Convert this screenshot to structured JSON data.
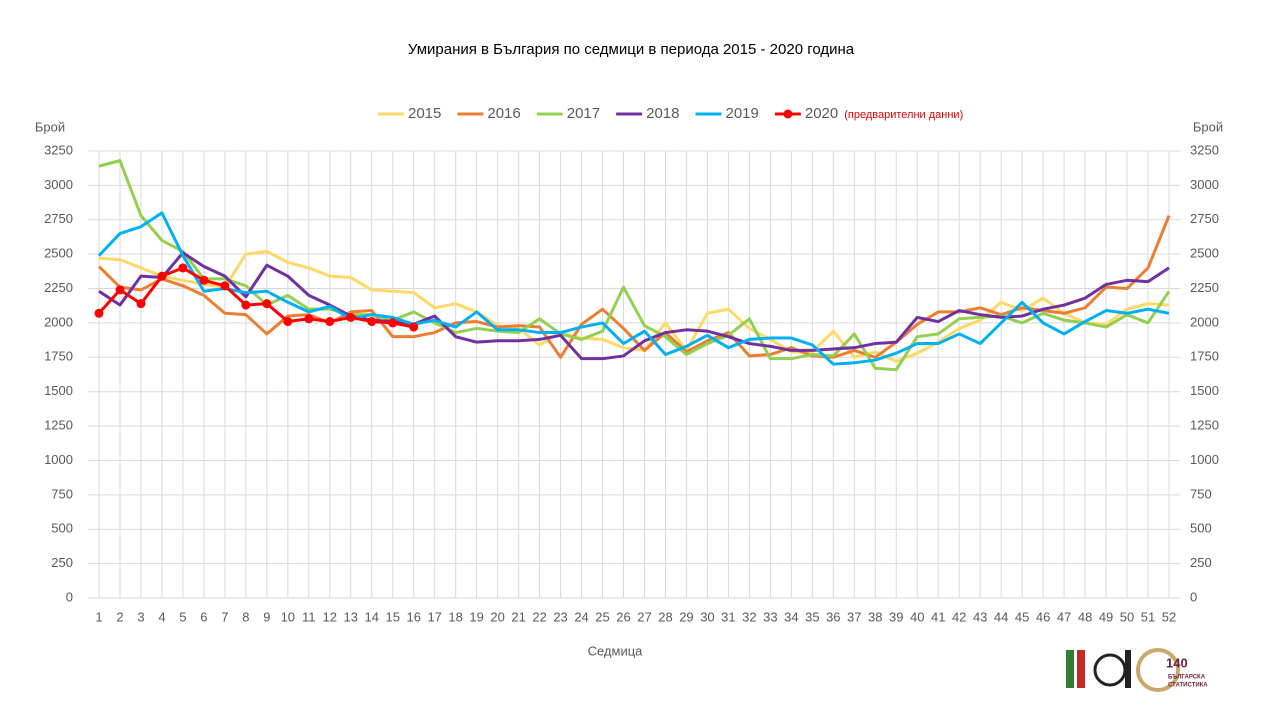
{
  "chart_data": {
    "type": "line",
    "title": "Умирания в България по седмици в периода 2015 - 2020 година",
    "x_label": "Седмица",
    "y_label": "Брой",
    "y2_label": "Брой",
    "annotation": "(предварителни данни)",
    "x": [
      1,
      2,
      3,
      4,
      5,
      6,
      7,
      8,
      9,
      10,
      11,
      12,
      13,
      14,
      15,
      16,
      17,
      18,
      19,
      20,
      21,
      22,
      23,
      24,
      25,
      26,
      27,
      28,
      29,
      30,
      31,
      32,
      33,
      34,
      35,
      36,
      37,
      38,
      39,
      40,
      41,
      42,
      43,
      44,
      45,
      46,
      47,
      48,
      49,
      50,
      51,
      52
    ],
    "xlim": [
      1,
      52
    ],
    "ylim": [
      0,
      3250
    ],
    "yticks": [
      0,
      250,
      500,
      750,
      1000,
      1250,
      1500,
      1750,
      2000,
      2250,
      2500,
      2750,
      3000,
      3250
    ],
    "y2lim": [
      0,
      3250
    ],
    "y2ticks": [
      0,
      250,
      500,
      750,
      1000,
      1250,
      1500,
      1750,
      2000,
      2250,
      2500,
      2750,
      3000,
      3250
    ],
    "grid": true,
    "legend": "top",
    "series": [
      {
        "name": "2015",
        "color": "#ffd966",
        "values": [
          2470,
          2460,
          2400,
          2340,
          2310,
          2280,
          2260,
          2500,
          2520,
          2440,
          2400,
          2340,
          2330,
          2240,
          2230,
          2220,
          2110,
          2140,
          2080,
          1980,
          1960,
          1840,
          1930,
          1890,
          1880,
          1820,
          1800,
          2000,
          1800,
          2070,
          2100,
          1960,
          1880,
          1790,
          1790,
          1940,
          1750,
          1790,
          1720,
          1780,
          1860,
          1960,
          2020,
          2150,
          2090,
          2180,
          2070,
          2000,
          1990,
          2100,
          2140,
          2130
        ]
      },
      {
        "name": "2016",
        "color": "#ed7d31",
        "values": [
          2410,
          2260,
          2240,
          2320,
          2270,
          2200,
          2070,
          2060,
          1920,
          2050,
          2060,
          2000,
          2080,
          2090,
          1900,
          1900,
          1930,
          2000,
          2010,
          1970,
          1980,
          1970,
          1750,
          1990,
          2100,
          1960,
          1800,
          1930,
          1790,
          1870,
          1930,
          1760,
          1770,
          1820,
          1760,
          1750,
          1800,
          1750,
          1860,
          1990,
          2080,
          2080,
          2110,
          2060,
          2110,
          2090,
          2070,
          2110,
          2260,
          2250,
          2400,
          2780
        ]
      },
      {
        "name": "2017",
        "color": "#92d050",
        "values": [
          3140,
          3180,
          2780,
          2600,
          2520,
          2320,
          2320,
          2270,
          2130,
          2200,
          2100,
          2100,
          2060,
          2060,
          2020,
          2080,
          2000,
          1930,
          1960,
          1940,
          1930,
          2030,
          1920,
          1880,
          1940,
          2260,
          1980,
          1900,
          1770,
          1850,
          1910,
          2030,
          1740,
          1740,
          1770,
          1760,
          1920,
          1670,
          1660,
          1900,
          1920,
          2030,
          2040,
          2050,
          2000,
          2070,
          2020,
          2000,
          1970,
          2060,
          2000,
          2230
        ]
      },
      {
        "name": "2018",
        "color": "#7030a0",
        "values": [
          2230,
          2130,
          2340,
          2330,
          2510,
          2410,
          2340,
          2190,
          2420,
          2340,
          2200,
          2130,
          2050,
          2020,
          2010,
          1990,
          2050,
          1900,
          1860,
          1870,
          1870,
          1880,
          1910,
          1740,
          1740,
          1760,
          1870,
          1930,
          1950,
          1940,
          1900,
          1850,
          1830,
          1800,
          1800,
          1810,
          1820,
          1850,
          1860,
          2040,
          2010,
          2090,
          2060,
          2040,
          2050,
          2100,
          2130,
          2180,
          2280,
          2310,
          2300,
          2400
        ]
      },
      {
        "name": "2019",
        "color": "#00b0f0",
        "values": [
          2490,
          2650,
          2700,
          2800,
          2490,
          2230,
          2250,
          2220,
          2230,
          2150,
          2080,
          2120,
          2030,
          2060,
          2040,
          1990,
          2020,
          1970,
          2080,
          1950,
          1950,
          1930,
          1930,
          1970,
          2000,
          1850,
          1940,
          1770,
          1830,
          1910,
          1820,
          1880,
          1890,
          1890,
          1840,
          1700,
          1710,
          1730,
          1780,
          1850,
          1850,
          1920,
          1850,
          2000,
          2150,
          2000,
          1920,
          2010,
          2090,
          2070,
          2100,
          2070
        ]
      },
      {
        "name": "2020",
        "color": "#ff0000",
        "marker": true,
        "values": [
          2070,
          2240,
          2140,
          2340,
          2400,
          2310,
          2270,
          2130,
          2140,
          2010,
          2030,
          2010,
          2040,
          2010,
          2000,
          1970,
          null,
          null,
          null,
          null,
          null,
          null,
          null,
          null,
          null,
          null,
          null,
          null,
          null,
          null,
          null,
          null,
          null,
          null,
          null,
          null,
          null,
          null,
          null,
          null,
          null,
          null,
          null,
          null,
          null,
          null,
          null,
          null,
          null,
          null,
          null,
          null
        ]
      }
    ]
  },
  "logos": {
    "anniversary": "140",
    "line1": "БЪЛГАРСКА",
    "line2": "СТАТИСТИКА"
  }
}
